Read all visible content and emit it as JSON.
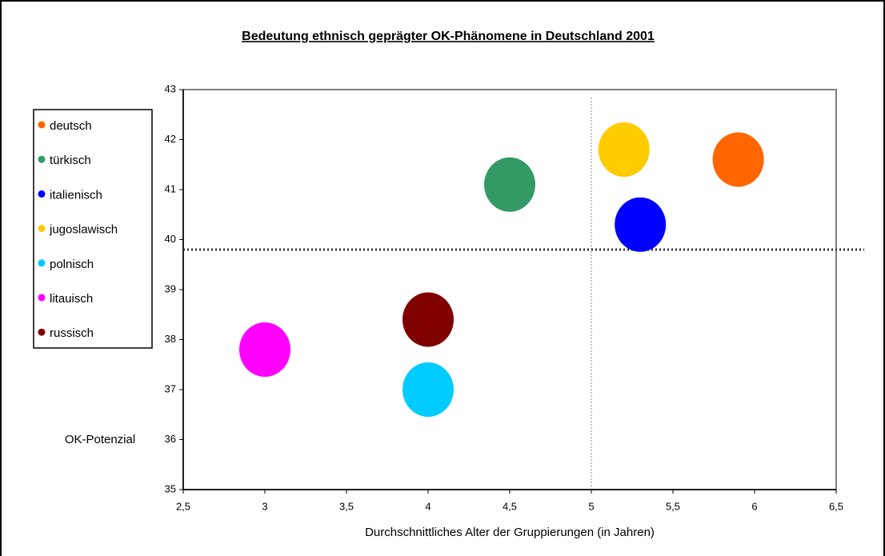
{
  "chart_data": {
    "type": "scatter",
    "title": "Bedeutung ethnisch geprägter OK-Phänomene in Deutschland 2001",
    "x_label": "Durchschnittliches Alter der Gruppierungen (in Jahren)",
    "y_label": "OK-Potenzial",
    "xlim": [
      2.5,
      6.5
    ],
    "xticks": [
      {
        "value": 2.5,
        "label": "2,5"
      },
      3,
      {
        "value": 3.5,
        "label": "3,5"
      },
      4,
      {
        "value": 4.5,
        "label": "4,5"
      },
      5,
      {
        "value": 5.5,
        "label": "5,5"
      },
      6,
      {
        "value": 6.5,
        "label": "6,5"
      }
    ],
    "ylim": [
      35,
      43
    ],
    "yticks": [
      35,
      36,
      37,
      38,
      39,
      40,
      41,
      42,
      43
    ],
    "reference_lines": {
      "x": 5,
      "y": 39.8
    },
    "legend": "left",
    "series": [
      {
        "name": "deutsch",
        "color": "#ff6600",
        "x": [
          5.9
        ],
        "values": [
          41.6
        ]
      },
      {
        "name": "türkisch",
        "color": "#339966",
        "x": [
          4.5
        ],
        "values": [
          41.1
        ]
      },
      {
        "name": "italienisch",
        "color": "#0000ff",
        "x": [
          5.3
        ],
        "values": [
          40.3
        ]
      },
      {
        "name": "jugoslawisch",
        "color": "#ffcc00",
        "x": [
          5.2
        ],
        "values": [
          41.8
        ]
      },
      {
        "name": "polnisch",
        "color": "#00ccff",
        "x": [
          4.0
        ],
        "values": [
          37.0
        ]
      },
      {
        "name": "litauisch",
        "color": "#ff00ff",
        "x": [
          3.0
        ],
        "values": [
          37.8
        ]
      },
      {
        "name": "russisch",
        "color": "#800000",
        "x": [
          4.0
        ],
        "values": [
          38.4
        ]
      }
    ]
  }
}
